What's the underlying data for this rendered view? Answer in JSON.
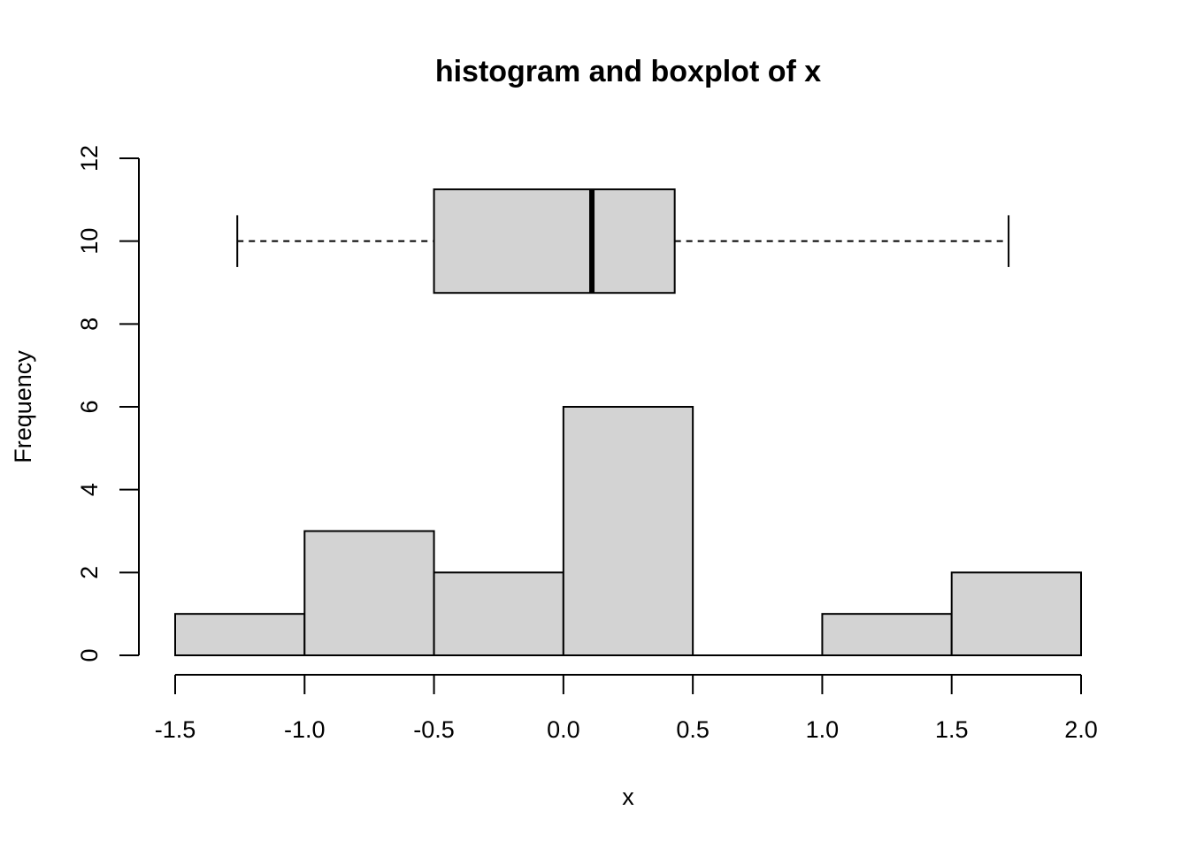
{
  "chart_data": {
    "type": "bar",
    "title": "histogram and boxplot of x",
    "xlabel": "x",
    "ylabel": "Frequency",
    "xlim": [
      -1.5,
      2.0
    ],
    "ylim": [
      0,
      12
    ],
    "x_ticks": [
      "-1.5",
      "-1.0",
      "-0.5",
      "0.0",
      "0.5",
      "1.0",
      "1.5",
      "2.0"
    ],
    "x_tick_values": [
      -1.5,
      -1.0,
      -0.5,
      0.0,
      0.5,
      1.0,
      1.5,
      2.0
    ],
    "y_ticks": [
      "0",
      "2",
      "4",
      "6",
      "8",
      "10",
      "12"
    ],
    "y_tick_values": [
      0,
      2,
      4,
      6,
      8,
      10,
      12
    ],
    "bins": [
      {
        "from": -1.5,
        "to": -1.0,
        "count": 1
      },
      {
        "from": -1.0,
        "to": -0.5,
        "count": 3
      },
      {
        "from": -0.5,
        "to": 0.0,
        "count": 2
      },
      {
        "from": 0.0,
        "to": 0.5,
        "count": 6
      },
      {
        "from": 0.5,
        "to": 1.0,
        "count": 0
      },
      {
        "from": 1.0,
        "to": 1.5,
        "count": 1
      },
      {
        "from": 1.5,
        "to": 2.0,
        "count": 2
      }
    ],
    "boxplot": {
      "whisker_low": -1.26,
      "q1": -0.5,
      "median": 0.11,
      "q3": 0.43,
      "whisker_high": 1.72,
      "center_y": 10,
      "box_half_height": 1.25
    },
    "colors": {
      "fill": "#d3d3d3",
      "stroke": "#000000"
    },
    "grid": false
  }
}
